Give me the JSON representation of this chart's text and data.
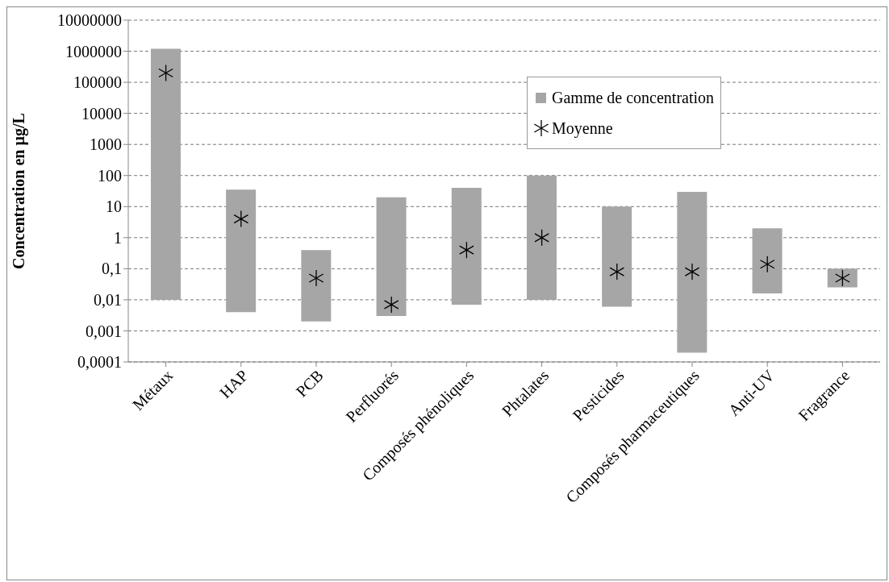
{
  "chart_data": {
    "type": "bar",
    "ylabel": "Concentration en µg/L",
    "categories": [
      "Métaux",
      "HAP",
      "PCB",
      "Perfluorés",
      "Composés phénoliques",
      "Phtalates",
      "Pesticides",
      "Composés pharmaceutiques",
      "Anti-UV",
      "Fragrance"
    ],
    "series": [
      {
        "name": "Gamme de concentration",
        "color": "#a6a6a6",
        "base": [
          0.01,
          0.004,
          0.002,
          0.003,
          0.007,
          0.01,
          0.006,
          0.0002,
          0.016,
          0.025
        ],
        "values": [
          1199999.99,
          34.996,
          0.398,
          19.997,
          39.993,
          99.99,
          9.994,
          29.9998,
          1.984,
          0.075
        ]
      },
      {
        "name": "Moyenne",
        "type": "scatter",
        "color": "#000000",
        "marker": "cross",
        "values": [
          200000,
          4,
          0.05,
          0.007,
          0.4,
          1,
          0.08,
          0.08,
          0.14,
          0.05
        ]
      }
    ],
    "log": true,
    "ylim": [
      0.0001,
      10000000
    ],
    "yticks": [
      {
        "value": 0.0001,
        "label": "0,0001"
      },
      {
        "value": 0.001,
        "label": "0,001"
      },
      {
        "value": 0.01,
        "label": "0,01"
      },
      {
        "value": 0.1,
        "label": "0,1"
      },
      1,
      10,
      100,
      1000,
      10000,
      100000,
      1000000,
      10000000
    ],
    "grid": "y",
    "legend": "top right"
  }
}
